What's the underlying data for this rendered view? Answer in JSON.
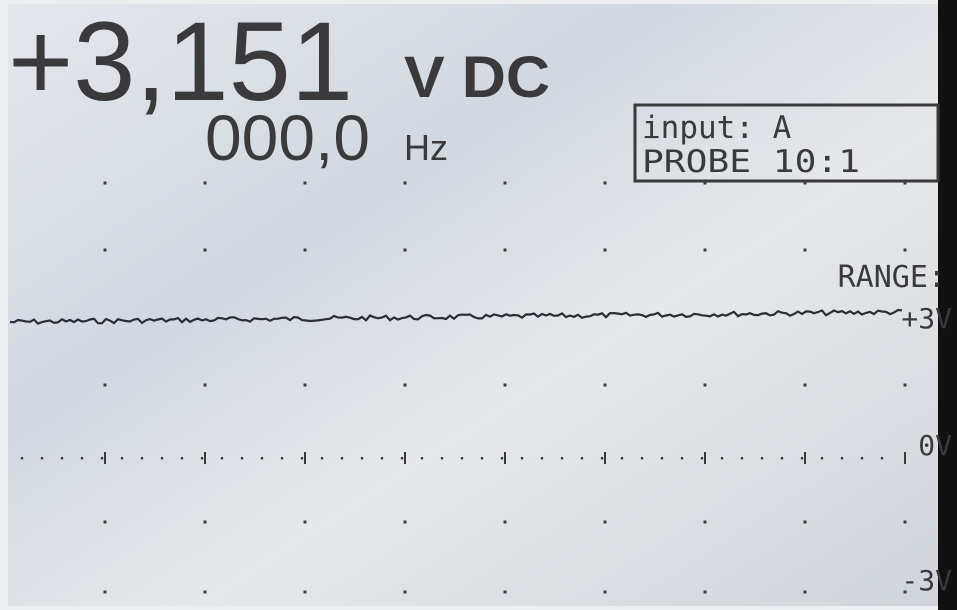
{
  "display": {
    "reading": "+3,151",
    "unit": "V DC",
    "frequency": "000,0",
    "frequency_unit": "Hz",
    "info_box": {
      "input": "input: A",
      "probe": "PROBE 10:1"
    },
    "range_label": "RANGE:",
    "scale_labels": {
      "top": "+3V",
      "middle": "0V",
      "bottom": "-3V"
    }
  }
}
